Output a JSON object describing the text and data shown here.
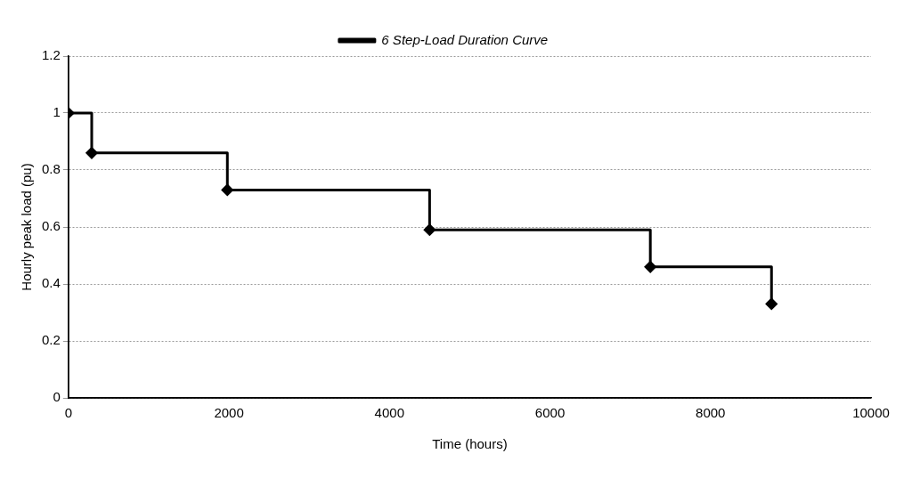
{
  "chart_data": {
    "type": "step",
    "xlabel": "Time (hours)",
    "ylabel": "Hourly peak load (pu)",
    "series": [
      {
        "name": "6 Step-Load Duration Curve",
        "color": "#000000",
        "x": [
          0,
          290,
          1980,
          4500,
          7250,
          8760
        ],
        "values": [
          1,
          0.86,
          0.73,
          0.59,
          0.46,
          0.33
        ]
      }
    ],
    "xlim": [
      0,
      10000
    ],
    "xticks": [
      0,
      2000,
      4000,
      6000,
      8000,
      10000
    ],
    "ylim": [
      0,
      1.2
    ],
    "yticks": [
      0,
      0.2,
      0.4,
      0.6,
      0.8,
      1,
      1.2
    ],
    "grid": "y",
    "legend": "top",
    "marker": "diamond",
    "line_style": "solid"
  }
}
